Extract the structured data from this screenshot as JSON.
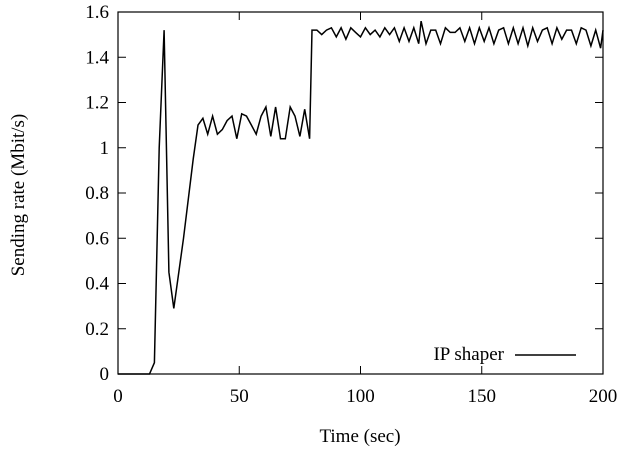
{
  "chart_data": {
    "type": "line",
    "title": "",
    "xlabel": "Time (sec)",
    "ylabel": "Sending rate (Mbit/s)",
    "xlim": [
      0,
      200
    ],
    "ylim": [
      0,
      1.6
    ],
    "x_ticks": [
      "0",
      "50",
      "100",
      "150",
      "200"
    ],
    "y_ticks": [
      "0",
      "0.2",
      "0.4",
      "0.6",
      "0.8",
      "1",
      "1.2",
      "1.4",
      "1.6"
    ],
    "grid": false,
    "legend_position": "bottom-right",
    "series": [
      {
        "name": "IP shaper",
        "color": "#000000",
        "points": [
          [
            0,
            0
          ],
          [
            13,
            0
          ],
          [
            15,
            0.05
          ],
          [
            17,
            1.0
          ],
          [
            19,
            1.52
          ],
          [
            21,
            0.45
          ],
          [
            23,
            0.29
          ],
          [
            27,
            0.6
          ],
          [
            31,
            0.95
          ],
          [
            33,
            1.1
          ],
          [
            35,
            1.13
          ],
          [
            37,
            1.06
          ],
          [
            39,
            1.14
          ],
          [
            41,
            1.06
          ],
          [
            43,
            1.08
          ],
          [
            45,
            1.12
          ],
          [
            47,
            1.14
          ],
          [
            49,
            1.04
          ],
          [
            51,
            1.15
          ],
          [
            53,
            1.14
          ],
          [
            55,
            1.1
          ],
          [
            57,
            1.06
          ],
          [
            59,
            1.14
          ],
          [
            61,
            1.18
          ],
          [
            63,
            1.05
          ],
          [
            65,
            1.18
          ],
          [
            67,
            1.04
          ],
          [
            69,
            1.04
          ],
          [
            71,
            1.18
          ],
          [
            73,
            1.14
          ],
          [
            75,
            1.05
          ],
          [
            77,
            1.17
          ],
          [
            79,
            1.04
          ],
          [
            80,
            1.52
          ],
          [
            82,
            1.52
          ],
          [
            84,
            1.5
          ],
          [
            86,
            1.52
          ],
          [
            88,
            1.53
          ],
          [
            90,
            1.49
          ],
          [
            92,
            1.53
          ],
          [
            94,
            1.48
          ],
          [
            96,
            1.53
          ],
          [
            98,
            1.51
          ],
          [
            100,
            1.49
          ],
          [
            102,
            1.53
          ],
          [
            104,
            1.5
          ],
          [
            106,
            1.52
          ],
          [
            108,
            1.49
          ],
          [
            110,
            1.53
          ],
          [
            112,
            1.5
          ],
          [
            114,
            1.53
          ],
          [
            116,
            1.47
          ],
          [
            118,
            1.53
          ],
          [
            120,
            1.47
          ],
          [
            122,
            1.53
          ],
          [
            124,
            1.46
          ],
          [
            125,
            1.56
          ],
          [
            127,
            1.46
          ],
          [
            129,
            1.52
          ],
          [
            131,
            1.52
          ],
          [
            133,
            1.46
          ],
          [
            135,
            1.53
          ],
          [
            137,
            1.51
          ],
          [
            139,
            1.51
          ],
          [
            141,
            1.53
          ],
          [
            143,
            1.47
          ],
          [
            145,
            1.53
          ],
          [
            147,
            1.46
          ],
          [
            149,
            1.53
          ],
          [
            151,
            1.47
          ],
          [
            153,
            1.53
          ],
          [
            155,
            1.46
          ],
          [
            157,
            1.52
          ],
          [
            159,
            1.53
          ],
          [
            161,
            1.46
          ],
          [
            163,
            1.53
          ],
          [
            165,
            1.46
          ],
          [
            167,
            1.53
          ],
          [
            169,
            1.45
          ],
          [
            171,
            1.53
          ],
          [
            173,
            1.47
          ],
          [
            175,
            1.52
          ],
          [
            177,
            1.53
          ],
          [
            179,
            1.46
          ],
          [
            181,
            1.53
          ],
          [
            183,
            1.48
          ],
          [
            185,
            1.52
          ],
          [
            187,
            1.52
          ],
          [
            189,
            1.46
          ],
          [
            191,
            1.53
          ],
          [
            193,
            1.52
          ],
          [
            195,
            1.45
          ],
          [
            197,
            1.52
          ],
          [
            199,
            1.44
          ],
          [
            200,
            1.52
          ]
        ]
      }
    ]
  }
}
